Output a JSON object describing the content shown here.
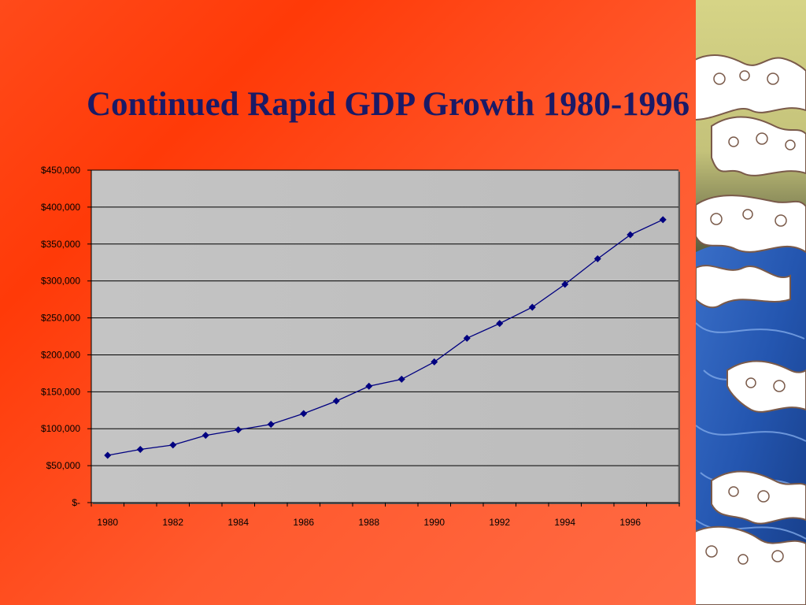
{
  "slide": {
    "title": "Continued Rapid GDP Growth 1980-1996",
    "colors": {
      "title": "#1a1a66",
      "background": "#ff4a1a",
      "plot_area": "#c0c0c0",
      "series": "#000080",
      "gridline": "#000000"
    },
    "decoration": "wave-art"
  },
  "chart_data": {
    "type": "line",
    "title": "",
    "xlabel": "",
    "ylabel": "",
    "x": [
      1980,
      1981,
      1982,
      1983,
      1984,
      1985,
      1986,
      1987,
      1988,
      1989,
      1990,
      1991,
      1992,
      1993,
      1994,
      1995,
      1996,
      1997
    ],
    "series": [
      {
        "values": [
          64000,
          72000,
          78000,
          91000,
          98500,
          106000,
          120500,
          137500,
          157500,
          167000,
          190500,
          222500,
          242500,
          264500,
          295500,
          330000,
          362500,
          383000
        ],
        "marker": "diamond"
      }
    ],
    "ylim": [
      0,
      450000
    ],
    "yticks": [
      0,
      50000,
      100000,
      150000,
      200000,
      250000,
      300000,
      350000,
      400000,
      450000
    ],
    "ytick_labels": [
      "$-",
      "$50,000",
      "$100,000",
      "$150,000",
      "$200,000",
      "$250,000",
      "$300,000",
      "$350,000",
      "$400,000",
      "$450,000"
    ],
    "xtick_labels": [
      "1980",
      "1982",
      "1984",
      "1986",
      "1988",
      "1990",
      "1992",
      "1994",
      "1996"
    ],
    "grid": true,
    "legend": "none"
  }
}
